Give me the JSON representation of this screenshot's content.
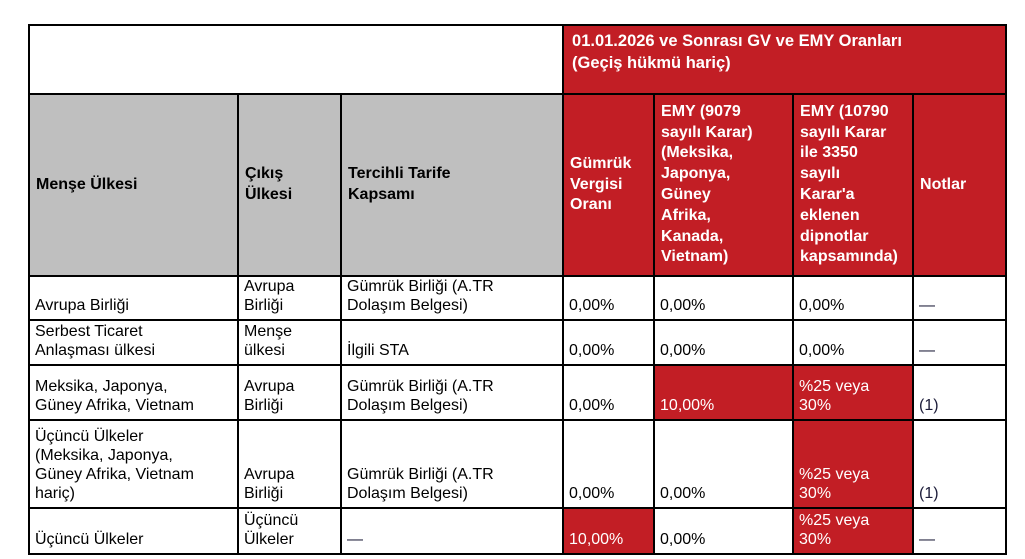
{
  "page": {
    "background_color": "#ffffff"
  },
  "colors": {
    "header_red": "#c21e25",
    "header_gray": "#bfbfbf",
    "border": "#000000",
    "text_on_red": "#ffffff",
    "note_ink": "#1d1d3a"
  },
  "table": {
    "top_banner": "01.01.2026 ve Sonrası GV ve EMY Oranları\n(Geçiş hükmü hariç)",
    "columns": [
      {
        "label": "Menşe Ülkesi",
        "theme": "gray"
      },
      {
        "label": "Çıkış\nÜlkesi",
        "theme": "gray"
      },
      {
        "label": "Tercihli Tarife\nKapsamı",
        "theme": "gray"
      },
      {
        "label": "Gümrük\nVergisi\nOranı",
        "theme": "red"
      },
      {
        "label": "EMY (9079\nsayılı Karar)\n(Meksika,\nJaponya,\nGüney\nAfrika,\nKanada,\nVietnam)",
        "theme": "red"
      },
      {
        "label": "EMY (10790\nsayılı Karar\nile 3350\nsayılı\nKarar'a\neklenen\ndipnotlar\nkapsamında)",
        "theme": "red"
      },
      {
        "label": "Notlar",
        "theme": "red"
      }
    ],
    "rows": [
      {
        "cells": [
          {
            "text": "Avrupa Birliği",
            "highlight": false,
            "note": false
          },
          {
            "text": "Avrupa\nBirliği",
            "highlight": false,
            "note": false
          },
          {
            "text": "Gümrük Birliği (A.TR\nDolaşım Belgesi)",
            "highlight": false,
            "note": false
          },
          {
            "text": "0,00%",
            "highlight": false,
            "note": false
          },
          {
            "text": "0,00%",
            "highlight": false,
            "note": false
          },
          {
            "text": "0,00%",
            "highlight": false,
            "note": false
          },
          {
            "text": "—",
            "highlight": false,
            "note": true
          }
        ]
      },
      {
        "cells": [
          {
            "text": "Serbest Ticaret\nAnlaşması ülkesi",
            "highlight": false,
            "note": false
          },
          {
            "text": "Menşe\nülkesi",
            "highlight": false,
            "note": false
          },
          {
            "text": "İlgili STA",
            "highlight": false,
            "note": false
          },
          {
            "text": "0,00%",
            "highlight": false,
            "note": false
          },
          {
            "text": "0,00%",
            "highlight": false,
            "note": false
          },
          {
            "text": "0,00%",
            "highlight": false,
            "note": false
          },
          {
            "text": "—",
            "highlight": false,
            "note": true
          }
        ]
      },
      {
        "cells": [
          {
            "text": "Meksika, Japonya,\nGüney Afrika, Vietnam",
            "highlight": false,
            "note": false
          },
          {
            "text": "Avrupa\nBirliği",
            "highlight": false,
            "note": false
          },
          {
            "text": "Gümrük Birliği (A.TR\nDolaşım Belgesi)",
            "highlight": false,
            "note": false
          },
          {
            "text": "0,00%",
            "highlight": false,
            "note": false
          },
          {
            "text": "10,00%",
            "highlight": true,
            "note": false
          },
          {
            "text": "%25 veya\n30%",
            "highlight": true,
            "note": false
          },
          {
            "text": "(1)",
            "highlight": false,
            "note": true
          }
        ]
      },
      {
        "cells": [
          {
            "text": "Üçüncü Ülkeler\n(Meksika, Japonya,\nGüney Afrika, Vietnam\nhariç)",
            "highlight": false,
            "note": false
          },
          {
            "text": "Avrupa\nBirliği",
            "highlight": false,
            "note": false
          },
          {
            "text": "Gümrük Birliği (A.TR\nDolaşım Belgesi)",
            "highlight": false,
            "note": false
          },
          {
            "text": "0,00%",
            "highlight": false,
            "note": false
          },
          {
            "text": "0,00%",
            "highlight": false,
            "note": false
          },
          {
            "text": "%25 veya\n30%",
            "highlight": true,
            "note": false
          },
          {
            "text": "(1)",
            "highlight": false,
            "note": true
          }
        ]
      },
      {
        "cells": [
          {
            "text": "Üçüncü Ülkeler",
            "highlight": false,
            "note": false
          },
          {
            "text": "Üçüncü\nÜlkeler",
            "highlight": false,
            "note": false
          },
          {
            "text": "—",
            "highlight": false,
            "note": true
          },
          {
            "text": "10,00%",
            "highlight": true,
            "note": false
          },
          {
            "text": "0,00%",
            "highlight": false,
            "note": false
          },
          {
            "text": "%25 veya\n30%",
            "highlight": true,
            "note": false
          },
          {
            "text": "—",
            "highlight": false,
            "note": true
          }
        ]
      }
    ]
  }
}
